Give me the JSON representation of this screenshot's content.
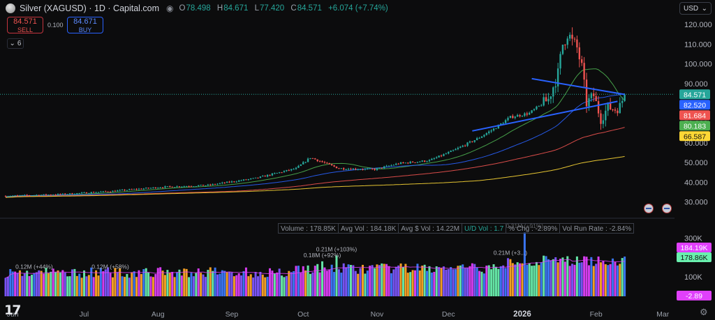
{
  "header": {
    "title": "Silver (XAGUSD) · 1D · Capital.com",
    "ohlc": [
      {
        "k": "O",
        "v": "78.498"
      },
      {
        "k": "H",
        "v": "84.671"
      },
      {
        "k": "L",
        "v": "77.420"
      },
      {
        "k": "C",
        "v": "84.571"
      }
    ],
    "change": "+6.074 (+7.74%)",
    "change_color": "#26a69a"
  },
  "trade": {
    "sell_price": "84.571",
    "sell_label": "SELL",
    "spread": "0.100",
    "buy_price": "84.671",
    "buy_label": "BUY"
  },
  "indicators_count": "6",
  "currency": "USD",
  "stats_bar": [
    {
      "text": "Volume : 178.85K",
      "ud": false
    },
    {
      "text": "Avg Vol : 184.18K",
      "ud": false
    },
    {
      "text": "Avg $ Vol : 14.22M",
      "ud": false
    },
    {
      "text": "U/D Vol : 1.7",
      "ud": true
    },
    {
      "text": "% Chg : -2.89%",
      "ud": false
    },
    {
      "text": "Vol Run Rate : -2.84%",
      "ud": false
    }
  ],
  "logo_text": "17",
  "chart_data": {
    "type": "candlestick",
    "title": "Silver (XAGUSD) · 1D · Capital.com",
    "price_axis": {
      "ticks": [
        "120.000",
        "110.000",
        "100.000",
        "90.000",
        "80.000",
        "70.000",
        "60.000",
        "50.000",
        "40.000",
        "30.000"
      ],
      "range": [
        25,
        124
      ]
    },
    "volume_axis": {
      "ticks": [
        "300K",
        "200K",
        "100K"
      ],
      "range": [
        0,
        330
      ]
    },
    "x_axis": {
      "ticks": [
        "Jun",
        "Jul",
        "Aug",
        "Sep",
        "Oct",
        "Nov",
        "Dec",
        "2026",
        "Feb",
        "Mar"
      ],
      "tick_days": [
        3,
        33,
        64,
        95,
        125,
        156,
        186,
        217,
        248,
        276
      ]
    },
    "current_price_line": 84.571,
    "price_labels": [
      {
        "value": "84.571",
        "color": "#26a69a"
      },
      {
        "value": "82.520",
        "color": "#2962ff"
      },
      {
        "value": "81.684",
        "color": "#ef5350"
      },
      {
        "value": "80.183",
        "color": "#4caf50"
      },
      {
        "value": "66.587",
        "color": "#fdd835"
      }
    ],
    "volume_labels": [
      {
        "value": "184.19K",
        "color": "#e040fb"
      },
      {
        "value": "178.86K",
        "color": "#69f0ae"
      },
      {
        "value": "-2.89",
        "color": "#e040fb"
      }
    ],
    "anchors": [
      [
        0,
        33
      ],
      [
        25,
        34
      ],
      [
        45,
        35.5
      ],
      [
        65,
        37.5
      ],
      [
        85,
        38.5
      ],
      [
        105,
        42
      ],
      [
        122,
        47
      ],
      [
        128,
        52.5
      ],
      [
        140,
        47
      ],
      [
        155,
        46.5
      ],
      [
        165,
        49.5
      ],
      [
        178,
        51
      ],
      [
        188,
        56
      ],
      [
        198,
        62
      ],
      [
        205,
        67
      ],
      [
        212,
        73
      ],
      [
        220,
        75
      ],
      [
        228,
        82
      ],
      [
        232,
        95
      ],
      [
        234,
        110
      ],
      [
        236,
        116
      ],
      [
        238,
        111
      ],
      [
        240,
        108
      ],
      [
        242,
        98
      ],
      [
        244,
        80
      ],
      [
        247,
        84
      ],
      [
        250,
        72
      ],
      [
        253,
        78
      ],
      [
        256,
        77
      ],
      [
        258,
        78.5
      ],
      [
        260,
        84.5
      ]
    ],
    "moving_averages": [
      {
        "name": "MA20",
        "color": "#4caf50"
      },
      {
        "name": "MA50",
        "color": "#2962ff"
      },
      {
        "name": "MA100",
        "color": "#ef5350"
      },
      {
        "name": "MA200",
        "color": "#fdd835"
      }
    ],
    "trendlines": [
      {
        "color": "#2962ff",
        "from": [
          221,
          92.5
        ],
        "to": [
          260,
          84.5
        ]
      },
      {
        "color": "#2962ff",
        "from": [
          196,
          66
        ],
        "to": [
          257,
          81
        ]
      }
    ],
    "volume_annotations": [
      {
        "text": "0.12M (+44%)",
        "day": 12
      },
      {
        "text": "0.12M (+58%)",
        "day": 44
      },
      {
        "text": "0.18M (+92%)",
        "day": 133
      },
      {
        "text": "0.21M (+103%)",
        "day": 139
      },
      {
        "text": "0.31M (+91%)",
        "day": 218
      },
      {
        "text": "0.21M (+3...)",
        "day": 212
      }
    ]
  }
}
